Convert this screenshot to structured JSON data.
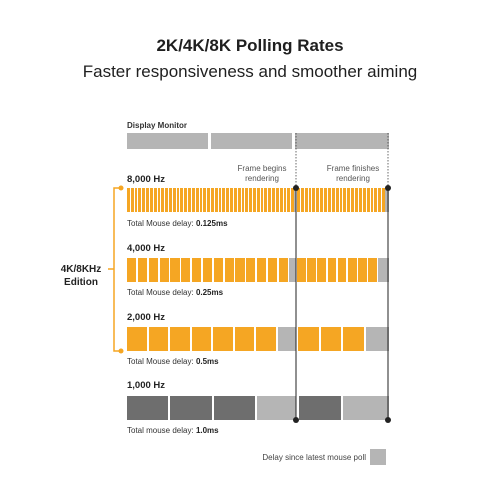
{
  "title": "2K/4K/8K Polling Rates",
  "subtitle": "Faster responsiveness and smoother aiming",
  "monitor": {
    "label": "Display Monitor"
  },
  "annotations": {
    "frame_begins": "Frame begins rendering",
    "frame_finishes": "Frame finishes rendering"
  },
  "edition": {
    "line1": "4K/8KHz",
    "line2": "Edition"
  },
  "rows": [
    {
      "rate": "8,000 Hz",
      "delay_prefix": "Total Mouse delay: ",
      "delay_value": "0.125ms"
    },
    {
      "rate": "4,000 Hz",
      "delay_prefix": "Total Mouse delay: ",
      "delay_value": "0.25ms"
    },
    {
      "rate": "2,000 Hz",
      "delay_prefix": "Total Mouse delay: ",
      "delay_value": "0.5ms"
    },
    {
      "rate": "1,000 Hz",
      "delay_prefix": "Total mouse delay: ",
      "delay_value": "1.0ms"
    }
  ],
  "legend": {
    "label": "Delay since latest mouse poll"
  },
  "colors": {
    "accent": "#f5a623",
    "delay": "#b5b5b5",
    "dark": "#6e6e6e",
    "monitor": "#b5b5b5",
    "line": "#222222"
  }
}
